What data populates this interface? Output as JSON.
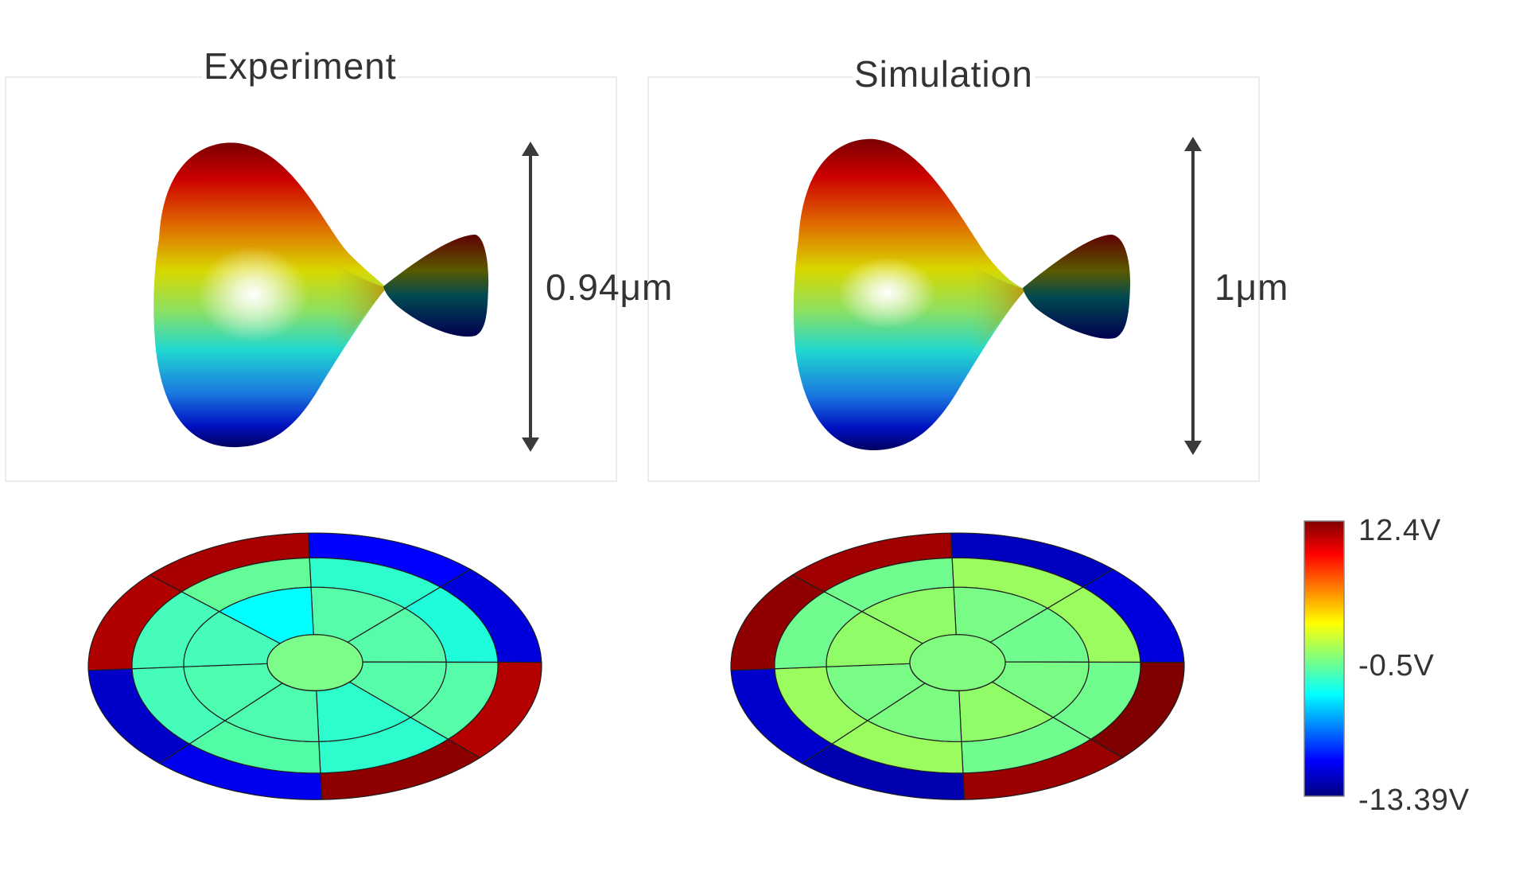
{
  "titles": {
    "experiment": "Experiment",
    "simulation": "Simulation"
  },
  "scale_bars": {
    "experiment": "0.94μm",
    "simulation": "1μm"
  },
  "colorbar": {
    "max_label": "12.4V",
    "mid_label": "-0.5V",
    "min_label": "-13.39V",
    "max_value": 12.4,
    "mid_value": -0.5,
    "min_value": -13.39,
    "colormap": "jet"
  },
  "colors": {
    "text": "#333333",
    "panel_border": "#ececec",
    "arrow": "#3a3a3a",
    "segment_line": "#1e1e1e"
  },
  "electrode_maps": {
    "experiment": {
      "outer_ring": [
        "#0000ff",
        "#0000dd",
        "#b50000",
        "#8e0000",
        "#0000ee",
        "#0000c8",
        "#b00000",
        "#a80000"
      ],
      "middle_ring": [
        "#2dfccc",
        "#1efcdc",
        "#57fcaa",
        "#2dfccc",
        "#51fca6",
        "#45fcbb",
        "#45fcbb",
        "#62fc98"
      ],
      "inner_ring": [
        "#57fcaa",
        "#57fcaa",
        "#57fcaa",
        "#2dfccc",
        "#4efcb0",
        "#4efcb0",
        "#45fcbb",
        "#00ffff"
      ],
      "center": "#7cfc88"
    },
    "simulation": {
      "outer_ring": [
        "#0000c0",
        "#0000dd",
        "#7f0000",
        "#9a0000",
        "#0000b0",
        "#0000cc",
        "#900000",
        "#a00000"
      ],
      "middle_ring": [
        "#9afc5e",
        "#9afc5e",
        "#70fc8e",
        "#70fc8e",
        "#9afc5e",
        "#9afc5e",
        "#70fc8e",
        "#70fc8e"
      ],
      "inner_ring": [
        "#78fc86",
        "#70fc8e",
        "#78fc86",
        "#90fc68",
        "#7cfc80",
        "#78fc86",
        "#90fc68",
        "#90fc68"
      ],
      "center": "#80fc80"
    }
  }
}
